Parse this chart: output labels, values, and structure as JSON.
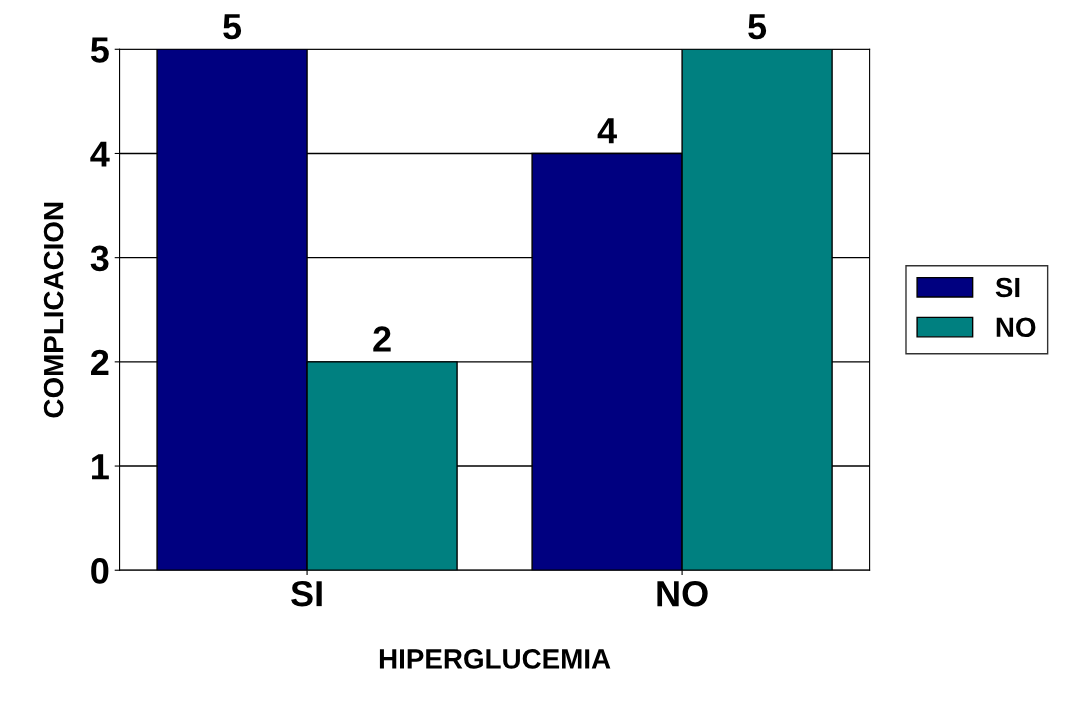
{
  "chart_data": {
    "type": "bar",
    "xlabel": "HIPERGLUCEMIA",
    "ylabel": "COMPLICACION",
    "categories": [
      "SI",
      "NO"
    ],
    "series": [
      {
        "name": "SI",
        "color": "#000080",
        "values": [
          5,
          4
        ]
      },
      {
        "name": "NO",
        "color": "#008080",
        "values": [
          2,
          5
        ]
      }
    ],
    "ylim": [
      0,
      5
    ],
    "yticks": [
      0,
      1,
      2,
      3,
      4,
      5
    ],
    "grid": "y",
    "legend": "right",
    "data_labels": true
  }
}
